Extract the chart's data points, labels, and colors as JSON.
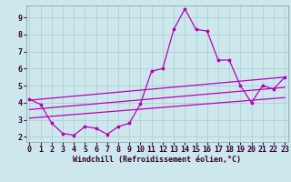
{
  "xlabel": "Windchill (Refroidissement éolien,°C)",
  "background_color": "#cce8ec",
  "grid_color": "#aacccc",
  "line_color": "#bb00bb",
  "x_ticks": [
    0,
    1,
    2,
    3,
    4,
    5,
    6,
    7,
    8,
    9,
    10,
    11,
    12,
    13,
    14,
    15,
    16,
    17,
    18,
    19,
    20,
    21,
    22,
    23
  ],
  "y_ticks": [
    2,
    3,
    4,
    5,
    6,
    7,
    8,
    9
  ],
  "xlim": [
    -0.3,
    23.3
  ],
  "ylim": [
    1.7,
    9.7
  ],
  "series_jagged_x": [
    0,
    1,
    2,
    3,
    4,
    5,
    6,
    7,
    8,
    9,
    10,
    11,
    12,
    13,
    14,
    15,
    16,
    17,
    18,
    19,
    20,
    21,
    22,
    23
  ],
  "series_jagged_y": [
    4.2,
    3.9,
    2.8,
    2.2,
    2.1,
    2.6,
    2.5,
    2.15,
    2.6,
    2.8,
    3.95,
    5.85,
    6.0,
    8.3,
    9.5,
    8.3,
    8.2,
    6.5,
    6.5,
    5.0,
    4.0,
    5.0,
    4.8,
    5.5
  ],
  "line1_x": [
    0,
    23
  ],
  "line1_y": [
    4.15,
    5.5
  ],
  "line2_x": [
    0,
    23
  ],
  "line2_y": [
    3.6,
    4.9
  ],
  "line3_x": [
    0,
    23
  ],
  "line3_y": [
    3.1,
    4.3
  ],
  "xlabel_fontsize": 6,
  "tick_fontsize": 6,
  "line_width": 0.9,
  "marker_size": 2.5
}
